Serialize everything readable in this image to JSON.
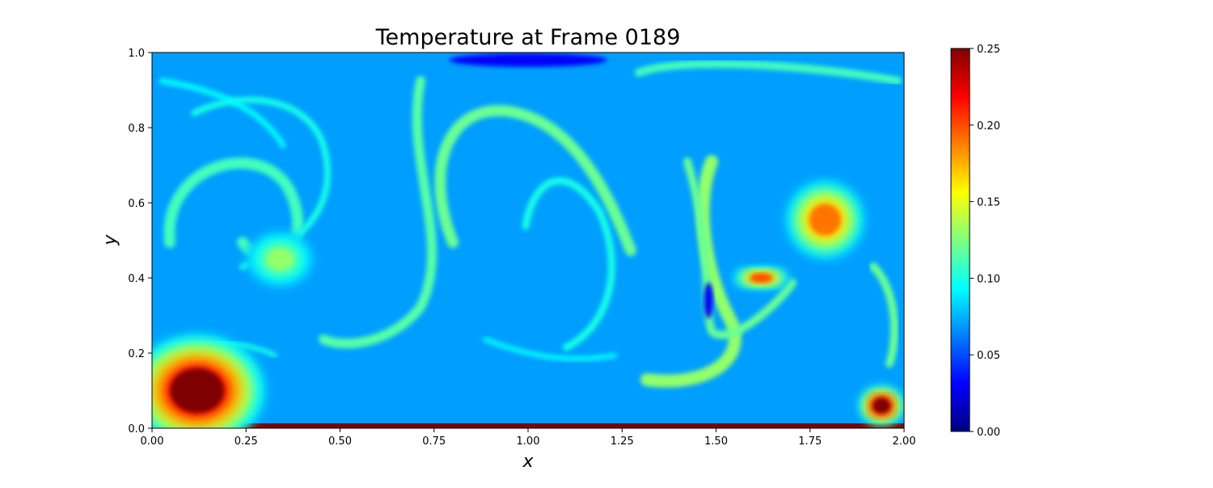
{
  "chart_data": {
    "type": "heatmap",
    "title": "Temperature at Frame 0189",
    "xlabel": "x",
    "ylabel": "y",
    "xlim": [
      0,
      2
    ],
    "ylim": [
      0,
      1
    ],
    "x_ticks": [
      "0.00",
      "0.25",
      "0.50",
      "0.75",
      "1.00",
      "1.25",
      "1.50",
      "1.75",
      "2.00"
    ],
    "y_ticks": [
      "0.0",
      "0.2",
      "0.4",
      "0.6",
      "0.8",
      "1.0"
    ],
    "colormap": "jet",
    "colorbar": {
      "range": [
        0,
        0.25
      ],
      "ticks": [
        "0.00",
        "0.05",
        "0.10",
        "0.15",
        "0.20",
        "0.25"
      ],
      "colors": [
        "#00007f",
        "#0000ff",
        "#007fff",
        "#00ffff",
        "#7fff7f",
        "#ffff00",
        "#ff7f00",
        "#ff0000",
        "#7f0000"
      ]
    },
    "background_value": 0.07,
    "features": [
      {
        "kind": "hot-spot",
        "x": 1.79,
        "y": 0.555,
        "rx": 0.07,
        "ry": 0.07,
        "value": 0.19
      },
      {
        "kind": "hot-spot",
        "x": 1.94,
        "y": 0.06,
        "rx": 0.04,
        "ry": 0.035,
        "value": 0.25
      },
      {
        "kind": "hot-spot",
        "x": 1.62,
        "y": 0.4,
        "rx": 0.05,
        "ry": 0.02,
        "value": 0.2
      },
      {
        "kind": "hot-plume",
        "x": 0.12,
        "y": 0.1,
        "rx": 0.12,
        "ry": 0.1,
        "value": 0.25
      },
      {
        "kind": "warm-blob",
        "x": 0.34,
        "y": 0.45,
        "rx": 0.06,
        "ry": 0.05,
        "value": 0.13
      },
      {
        "kind": "cold-band",
        "x": 1.0,
        "y": 0.98,
        "rx": 0.35,
        "ry": 0.03,
        "value": 0.03
      },
      {
        "kind": "cold-spot",
        "x": 1.48,
        "y": 0.34,
        "rx": 0.02,
        "ry": 0.08,
        "value": 0.03
      }
    ]
  }
}
